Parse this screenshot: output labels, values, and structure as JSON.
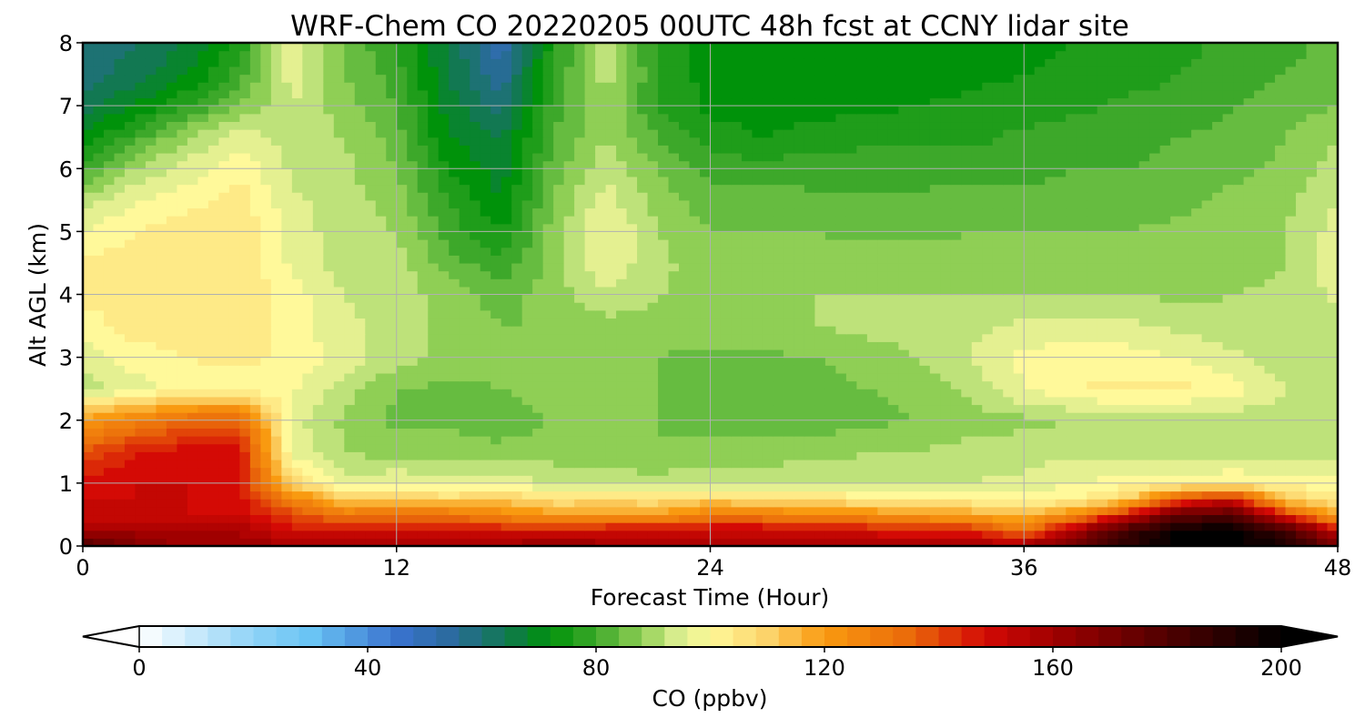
{
  "chart_data": {
    "type": "heatmap",
    "title": "WRF-Chem CO  20220205 00UTC 48h fcst at CCNY lidar site",
    "xlabel": "Forecast Time (Hour)",
    "ylabel": "Alt AGL (km)",
    "xlim": [
      0,
      48
    ],
    "ylim": [
      0,
      8
    ],
    "x_ticks": [
      "0",
      "12",
      "24",
      "36",
      "48"
    ],
    "y_ticks": [
      "0",
      "1",
      "2",
      "3",
      "4",
      "5",
      "6",
      "7",
      "8"
    ],
    "grid": true,
    "colorbar": {
      "label": "CO  (ppbv)",
      "range": [
        0,
        200
      ],
      "ticks": [
        "0",
        "40",
        "80",
        "120",
        "160",
        "200"
      ],
      "extend": "both",
      "stops": [
        {
          "v": 0,
          "color": "#ffffff"
        },
        {
          "v": 20,
          "color": "#8fd3f7"
        },
        {
          "v": 30,
          "color": "#6ac4f4"
        },
        {
          "v": 45,
          "color": "#3a73cf"
        },
        {
          "v": 55,
          "color": "#2a6a9c"
        },
        {
          "v": 65,
          "color": "#0f7a4a"
        },
        {
          "v": 72,
          "color": "#00920a"
        },
        {
          "v": 80,
          "color": "#3da82a"
        },
        {
          "v": 88,
          "color": "#8fcf55"
        },
        {
          "v": 94,
          "color": "#d6ec8c"
        },
        {
          "v": 100,
          "color": "#fff99a"
        },
        {
          "v": 110,
          "color": "#fcd36a"
        },
        {
          "v": 120,
          "color": "#f99a10"
        },
        {
          "v": 135,
          "color": "#ea6a0a"
        },
        {
          "v": 148,
          "color": "#d40a05"
        },
        {
          "v": 160,
          "color": "#a00000"
        },
        {
          "v": 180,
          "color": "#500000"
        },
        {
          "v": 200,
          "color": "#000000"
        }
      ]
    },
    "x": [
      0,
      2,
      4,
      6,
      8,
      10,
      12,
      14,
      16,
      18,
      20,
      22,
      24,
      26,
      28,
      30,
      32,
      34,
      36,
      38,
      40,
      42,
      44,
      46,
      48
    ],
    "y": [
      0,
      0.25,
      0.5,
      0.75,
      1,
      1.5,
      2,
      2.5,
      3,
      3.5,
      4,
      4.5,
      5,
      5.5,
      6,
      6.5,
      7,
      7.5,
      8
    ],
    "z": [
      [
        180,
        168,
        160,
        160,
        160,
        158,
        160,
        158,
        160,
        165,
        160,
        158,
        160,
        158,
        157,
        158,
        160,
        158,
        160,
        175,
        190,
        200,
        200,
        195,
        170
      ],
      [
        160,
        160,
        158,
        158,
        148,
        150,
        150,
        150,
        148,
        146,
        150,
        150,
        152,
        152,
        150,
        148,
        145,
        145,
        130,
        160,
        185,
        200,
        200,
        185,
        150
      ],
      [
        152,
        150,
        150,
        150,
        140,
        130,
        134,
        132,
        125,
        120,
        118,
        120,
        128,
        128,
        125,
        124,
        120,
        118,
        115,
        125,
        150,
        175,
        178,
        145,
        115
      ],
      [
        150,
        150,
        150,
        148,
        128,
        112,
        112,
        108,
        112,
        106,
        108,
        106,
        110,
        108,
        108,
        104,
        102,
        102,
        100,
        102,
        110,
        140,
        150,
        110,
        105
      ],
      [
        148,
        150,
        150,
        148,
        110,
        95,
        98,
        96,
        98,
        93,
        92,
        92,
        94,
        93,
        92,
        92,
        93,
        94,
        95,
        98,
        100,
        100,
        102,
        100,
        100
      ],
      [
        138,
        146,
        148,
        148,
        96,
        90,
        88,
        88,
        87,
        88,
        88,
        86,
        87,
        88,
        89,
        90,
        90,
        92,
        92,
        93,
        93,
        92,
        92,
        92,
        93
      ],
      [
        120,
        128,
        135,
        136,
        96,
        89,
        85,
        85,
        84,
        86,
        86,
        86,
        85,
        83,
        83,
        85,
        86,
        88,
        89,
        90,
        91,
        91,
        91,
        91,
        91
      ],
      [
        92,
        96,
        100,
        100,
        99,
        92,
        86,
        85,
        86,
        88,
        88,
        86,
        83,
        82,
        84,
        86,
        87,
        91,
        98,
        102,
        103,
        103,
        100,
        94,
        91
      ],
      [
        96,
        100,
        102,
        103,
        101,
        96,
        92,
        88,
        88,
        86,
        88,
        86,
        85,
        85,
        86,
        88,
        90,
        94,
        99,
        101,
        100,
        98,
        95,
        91,
        92
      ],
      [
        100,
        104,
        105,
        104,
        100,
        95,
        92,
        89,
        86,
        86,
        88,
        88,
        88,
        89,
        90,
        91,
        92,
        93,
        95,
        96,
        95,
        93,
        91,
        90,
        92
      ],
      [
        103,
        104,
        104,
        105,
        100,
        94,
        92,
        88,
        84,
        88,
        94,
        90,
        89,
        90,
        90,
        90,
        90,
        90,
        90,
        90,
        90,
        89,
        90,
        91,
        95
      ],
      [
        103,
        104,
        104,
        106,
        97,
        92,
        92,
        84,
        79,
        88,
        97,
        91,
        88,
        88,
        88,
        88,
        88,
        88,
        88,
        88,
        88,
        88,
        88,
        90,
        97
      ],
      [
        98,
        102,
        105,
        106,
        96,
        92,
        90,
        80,
        74,
        88,
        99,
        90,
        86,
        86,
        86,
        85,
        85,
        86,
        86,
        86,
        86,
        87,
        88,
        90,
        96
      ],
      [
        92,
        98,
        100,
        104,
        95,
        92,
        88,
        78,
        70,
        86,
        96,
        88,
        84,
        84,
        83,
        83,
        83,
        84,
        84,
        84,
        84,
        85,
        87,
        89,
        94
      ],
      [
        80,
        90,
        96,
        101,
        93,
        91,
        86,
        74,
        68,
        84,
        93,
        86,
        80,
        80,
        80,
        80,
        80,
        80,
        80,
        82,
        82,
        83,
        85,
        87,
        92
      ],
      [
        70,
        80,
        90,
        96,
        92,
        90,
        84,
        70,
        66,
        82,
        90,
        82,
        76,
        74,
        76,
        77,
        77,
        77,
        79,
        80,
        81,
        82,
        83,
        86,
        90
      ],
      [
        64,
        70,
        78,
        86,
        94,
        88,
        82,
        68,
        60,
        80,
        90,
        78,
        73,
        72,
        72,
        73,
        74,
        75,
        76,
        77,
        79,
        80,
        82,
        84,
        86
      ],
      [
        60,
        64,
        70,
        80,
        96,
        86,
        80,
        66,
        55,
        78,
        92,
        78,
        72,
        71,
        72,
        72,
        72,
        73,
        74,
        75,
        76,
        78,
        80,
        82,
        84
      ],
      [
        58,
        62,
        66,
        75,
        98,
        85,
        78,
        66,
        50,
        76,
        94,
        76,
        72,
        71,
        71,
        72,
        72,
        72,
        73,
        74,
        75,
        77,
        79,
        81,
        83
      ]
    ]
  }
}
